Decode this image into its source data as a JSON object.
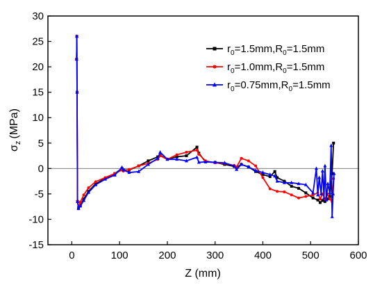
{
  "chart_data": {
    "type": "line",
    "title": "",
    "xlabel": "Z (mm)",
    "ylabel": "σz (MPa)",
    "ylabel_base": "σ",
    "ylabel_sub": "z",
    "ylabel_unit": "(MPa)",
    "xlim": [
      -50,
      600
    ],
    "ylim": [
      -15,
      30
    ],
    "xticks": [
      0,
      100,
      200,
      300,
      400,
      500,
      600
    ],
    "yticks": [
      -15,
      -10,
      -5,
      0,
      5,
      10,
      15,
      20,
      25,
      30
    ],
    "grid": false,
    "zero_line": true,
    "legend_position": "top-right",
    "series": [
      {
        "name": "r0=1.5mm,R0=1.5mm",
        "label_parts": [
          "r",
          "0",
          "=1.5mm,R",
          "0",
          "=1.5mm"
        ],
        "color": "#000000",
        "marker": "square",
        "x": [
          10,
          10.5,
          11,
          12,
          14,
          18,
          25,
          35,
          50,
          70,
          90,
          105,
          108,
          120,
          140,
          160,
          180,
          185,
          200,
          220,
          240,
          262,
          266,
          280,
          300,
          320,
          340,
          345,
          355,
          370,
          385,
          400,
          415,
          425,
          430,
          445,
          460,
          475,
          490,
          505,
          515,
          520,
          525,
          530,
          535,
          540,
          545,
          548
        ],
        "y": [
          21.5,
          26,
          15,
          -6.5,
          -7.8,
          -7.2,
          -6,
          -4.5,
          -3,
          -2,
          -1,
          0,
          -0.3,
          -0.3,
          0.5,
          1.5,
          2.3,
          2.6,
          1.8,
          2.3,
          2.5,
          4.2,
          3,
          1.3,
          1.2,
          0.8,
          0.4,
          0.2,
          0.8,
          0.3,
          -0.6,
          -1.2,
          -1.6,
          -0.6,
          -1.8,
          -2.5,
          -3.5,
          -3.9,
          -4.8,
          -5.8,
          -6.2,
          -6.7,
          -6.3,
          -6.5,
          -6,
          -5.5,
          -1,
          5
        ]
      },
      {
        "name": "r0=1.0mm,R0=1.5mm",
        "label_parts": [
          "r",
          "0",
          "=1.0mm,R",
          "0",
          "=1.5mm"
        ],
        "color": "#ff0000",
        "marker": "circle",
        "x": [
          10,
          10.5,
          11,
          12,
          14,
          18,
          25,
          35,
          50,
          70,
          90,
          105,
          108,
          120,
          140,
          160,
          180,
          185,
          200,
          220,
          240,
          262,
          266,
          280,
          300,
          320,
          340,
          345,
          355,
          370,
          385,
          400,
          415,
          430,
          445,
          460,
          475,
          490,
          505,
          515,
          520,
          525,
          530,
          535,
          540,
          545,
          548
        ],
        "y": [
          21.5,
          26,
          15,
          -6.5,
          -7.6,
          -6.6,
          -5.2,
          -3.8,
          -2.6,
          -1.8,
          -1,
          -0.3,
          -0.5,
          -0.2,
          0.5,
          1,
          1.8,
          2.5,
          1.8,
          2.7,
          3.2,
          3.6,
          2.8,
          1.5,
          1.1,
          1,
          0.6,
          0.3,
          2,
          1.5,
          0.5,
          -1.8,
          -4,
          -4.5,
          -4.6,
          -5.2,
          -5.8,
          -5.5,
          -5.2,
          -4.8,
          -6,
          -5,
          -6,
          -5,
          -6,
          -6.5,
          -2
        ]
      },
      {
        "name": "r0=0.75mm,R0=1.5mm",
        "label_parts": [
          "r",
          "0",
          "=0.75mm,R",
          "0",
          "=1.5mm"
        ],
        "color": "#0000ff",
        "marker": "triangle",
        "x": [
          10,
          10.5,
          11,
          12,
          14,
          18,
          25,
          35,
          50,
          70,
          90,
          105,
          108,
          120,
          140,
          160,
          180,
          185,
          200,
          220,
          240,
          262,
          266,
          280,
          300,
          320,
          340,
          345,
          355,
          370,
          385,
          400,
          415,
          425,
          430,
          445,
          460,
          475,
          490,
          505,
          512,
          515,
          518,
          522,
          525,
          528,
          530,
          533,
          536,
          540,
          543,
          545,
          547,
          549
        ],
        "y": [
          21.5,
          26,
          15,
          -6.5,
          -7.9,
          -7.4,
          -6.3,
          -4.7,
          -3.2,
          -2.1,
          -1.3,
          0.2,
          -0.3,
          -0.8,
          -0.6,
          0.8,
          2,
          3.2,
          1.8,
          1.8,
          1.5,
          2.2,
          1.2,
          1.3,
          1.2,
          1.1,
          0.5,
          -0.2,
          0.8,
          0.3,
          -0.4,
          -0.8,
          -1.2,
          -1.5,
          -2.5,
          -2.8,
          -2.8,
          -3,
          -3.2,
          -4.8,
          0,
          -5.2,
          -1.8,
          -5,
          -0.5,
          -5.8,
          0.5,
          -6.2,
          -3,
          -4.8,
          4.5,
          -9.5,
          -5,
          -1
        ]
      }
    ]
  }
}
